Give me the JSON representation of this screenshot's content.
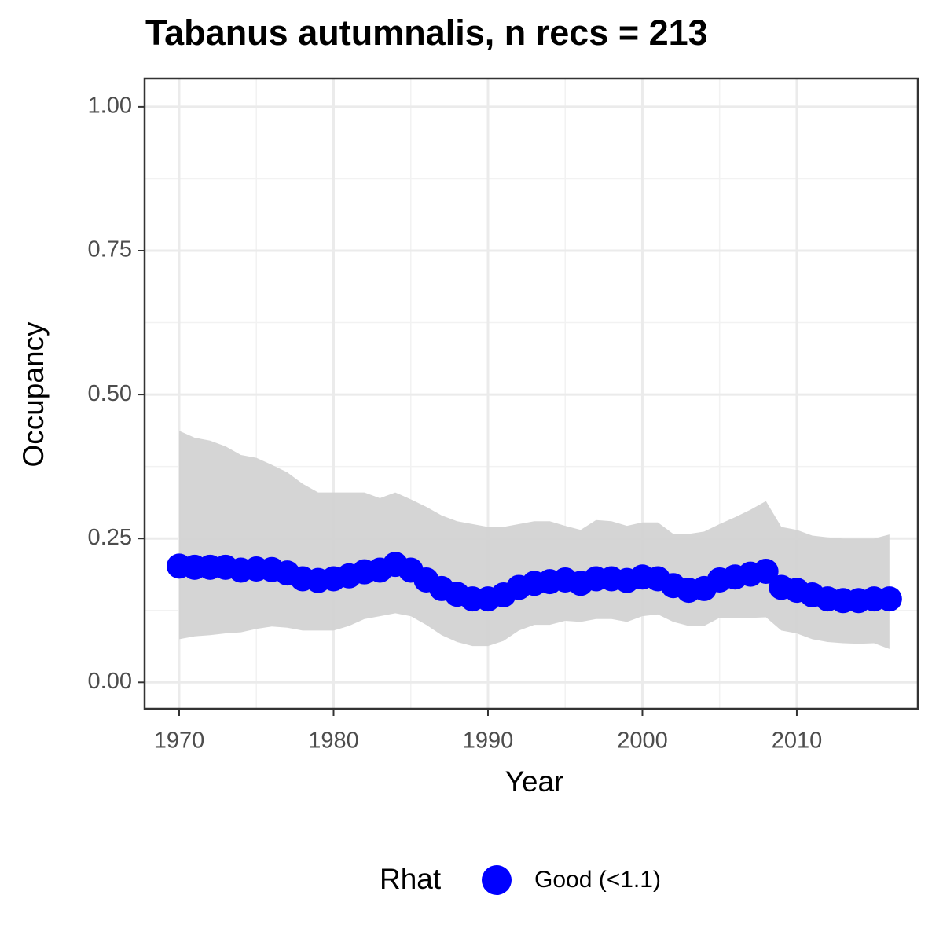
{
  "chart_data": {
    "type": "line",
    "title": "Tabanus autumnalis, n recs = 213",
    "x_label": "Year",
    "y_label": "Occupancy",
    "legend_title": "Rhat",
    "legend_position": "bottom",
    "grid": true,
    "x": [
      1970,
      1971,
      1972,
      1973,
      1974,
      1975,
      1976,
      1977,
      1978,
      1979,
      1980,
      1981,
      1982,
      1983,
      1984,
      1985,
      1986,
      1987,
      1988,
      1989,
      1990,
      1991,
      1992,
      1993,
      1994,
      1995,
      1996,
      1997,
      1998,
      1999,
      2000,
      2001,
      2002,
      2003,
      2004,
      2005,
      2006,
      2007,
      2008,
      2009,
      2010,
      2011,
      2012,
      2013,
      2014,
      2015,
      2016
    ],
    "series": [
      {
        "name": "Good (<1.1)",
        "color": "#0000ff",
        "ribbon_color": "#d3d3d3",
        "values": [
          0.202,
          0.2,
          0.2,
          0.2,
          0.195,
          0.197,
          0.196,
          0.19,
          0.18,
          0.177,
          0.18,
          0.185,
          0.192,
          0.195,
          0.205,
          0.195,
          0.178,
          0.163,
          0.153,
          0.145,
          0.145,
          0.152,
          0.165,
          0.172,
          0.175,
          0.178,
          0.172,
          0.18,
          0.18,
          0.177,
          0.183,
          0.18,
          0.168,
          0.16,
          0.163,
          0.178,
          0.183,
          0.188,
          0.193,
          0.165,
          0.16,
          0.152,
          0.145,
          0.142,
          0.142,
          0.145,
          0.145
        ],
        "upper": [
          0.437,
          0.425,
          0.42,
          0.41,
          0.395,
          0.39,
          0.378,
          0.365,
          0.345,
          0.33,
          0.33,
          0.33,
          0.33,
          0.32,
          0.33,
          0.318,
          0.305,
          0.29,
          0.28,
          0.275,
          0.27,
          0.27,
          0.275,
          0.28,
          0.28,
          0.272,
          0.265,
          0.282,
          0.28,
          0.272,
          0.278,
          0.278,
          0.258,
          0.258,
          0.262,
          0.275,
          0.287,
          0.3,
          0.315,
          0.27,
          0.265,
          0.255,
          0.252,
          0.25,
          0.25,
          0.25,
          0.257
        ],
        "lower": [
          0.075,
          0.08,
          0.082,
          0.085,
          0.087,
          0.093,
          0.097,
          0.095,
          0.09,
          0.09,
          0.09,
          0.098,
          0.11,
          0.115,
          0.12,
          0.115,
          0.1,
          0.082,
          0.07,
          0.063,
          0.063,
          0.072,
          0.09,
          0.1,
          0.1,
          0.107,
          0.105,
          0.11,
          0.11,
          0.105,
          0.115,
          0.118,
          0.105,
          0.098,
          0.098,
          0.112,
          0.112,
          0.112,
          0.113,
          0.09,
          0.085,
          0.075,
          0.07,
          0.068,
          0.067,
          0.068,
          0.058
        ]
      }
    ],
    "xlim": [
      1967.76,
      2017.84
    ],
    "xticks": [
      1970,
      1980,
      1990,
      2000,
      2010
    ],
    "ylim": [
      -0.046,
      1.049
    ],
    "yticks": [
      {
        "value": 0,
        "label": "0.00"
      },
      {
        "value": 0.25,
        "label": "0.25"
      },
      {
        "value": 0.5,
        "label": "0.50"
      },
      {
        "value": 0.75,
        "label": "0.75"
      },
      {
        "value": 1,
        "label": "1.00"
      }
    ]
  }
}
